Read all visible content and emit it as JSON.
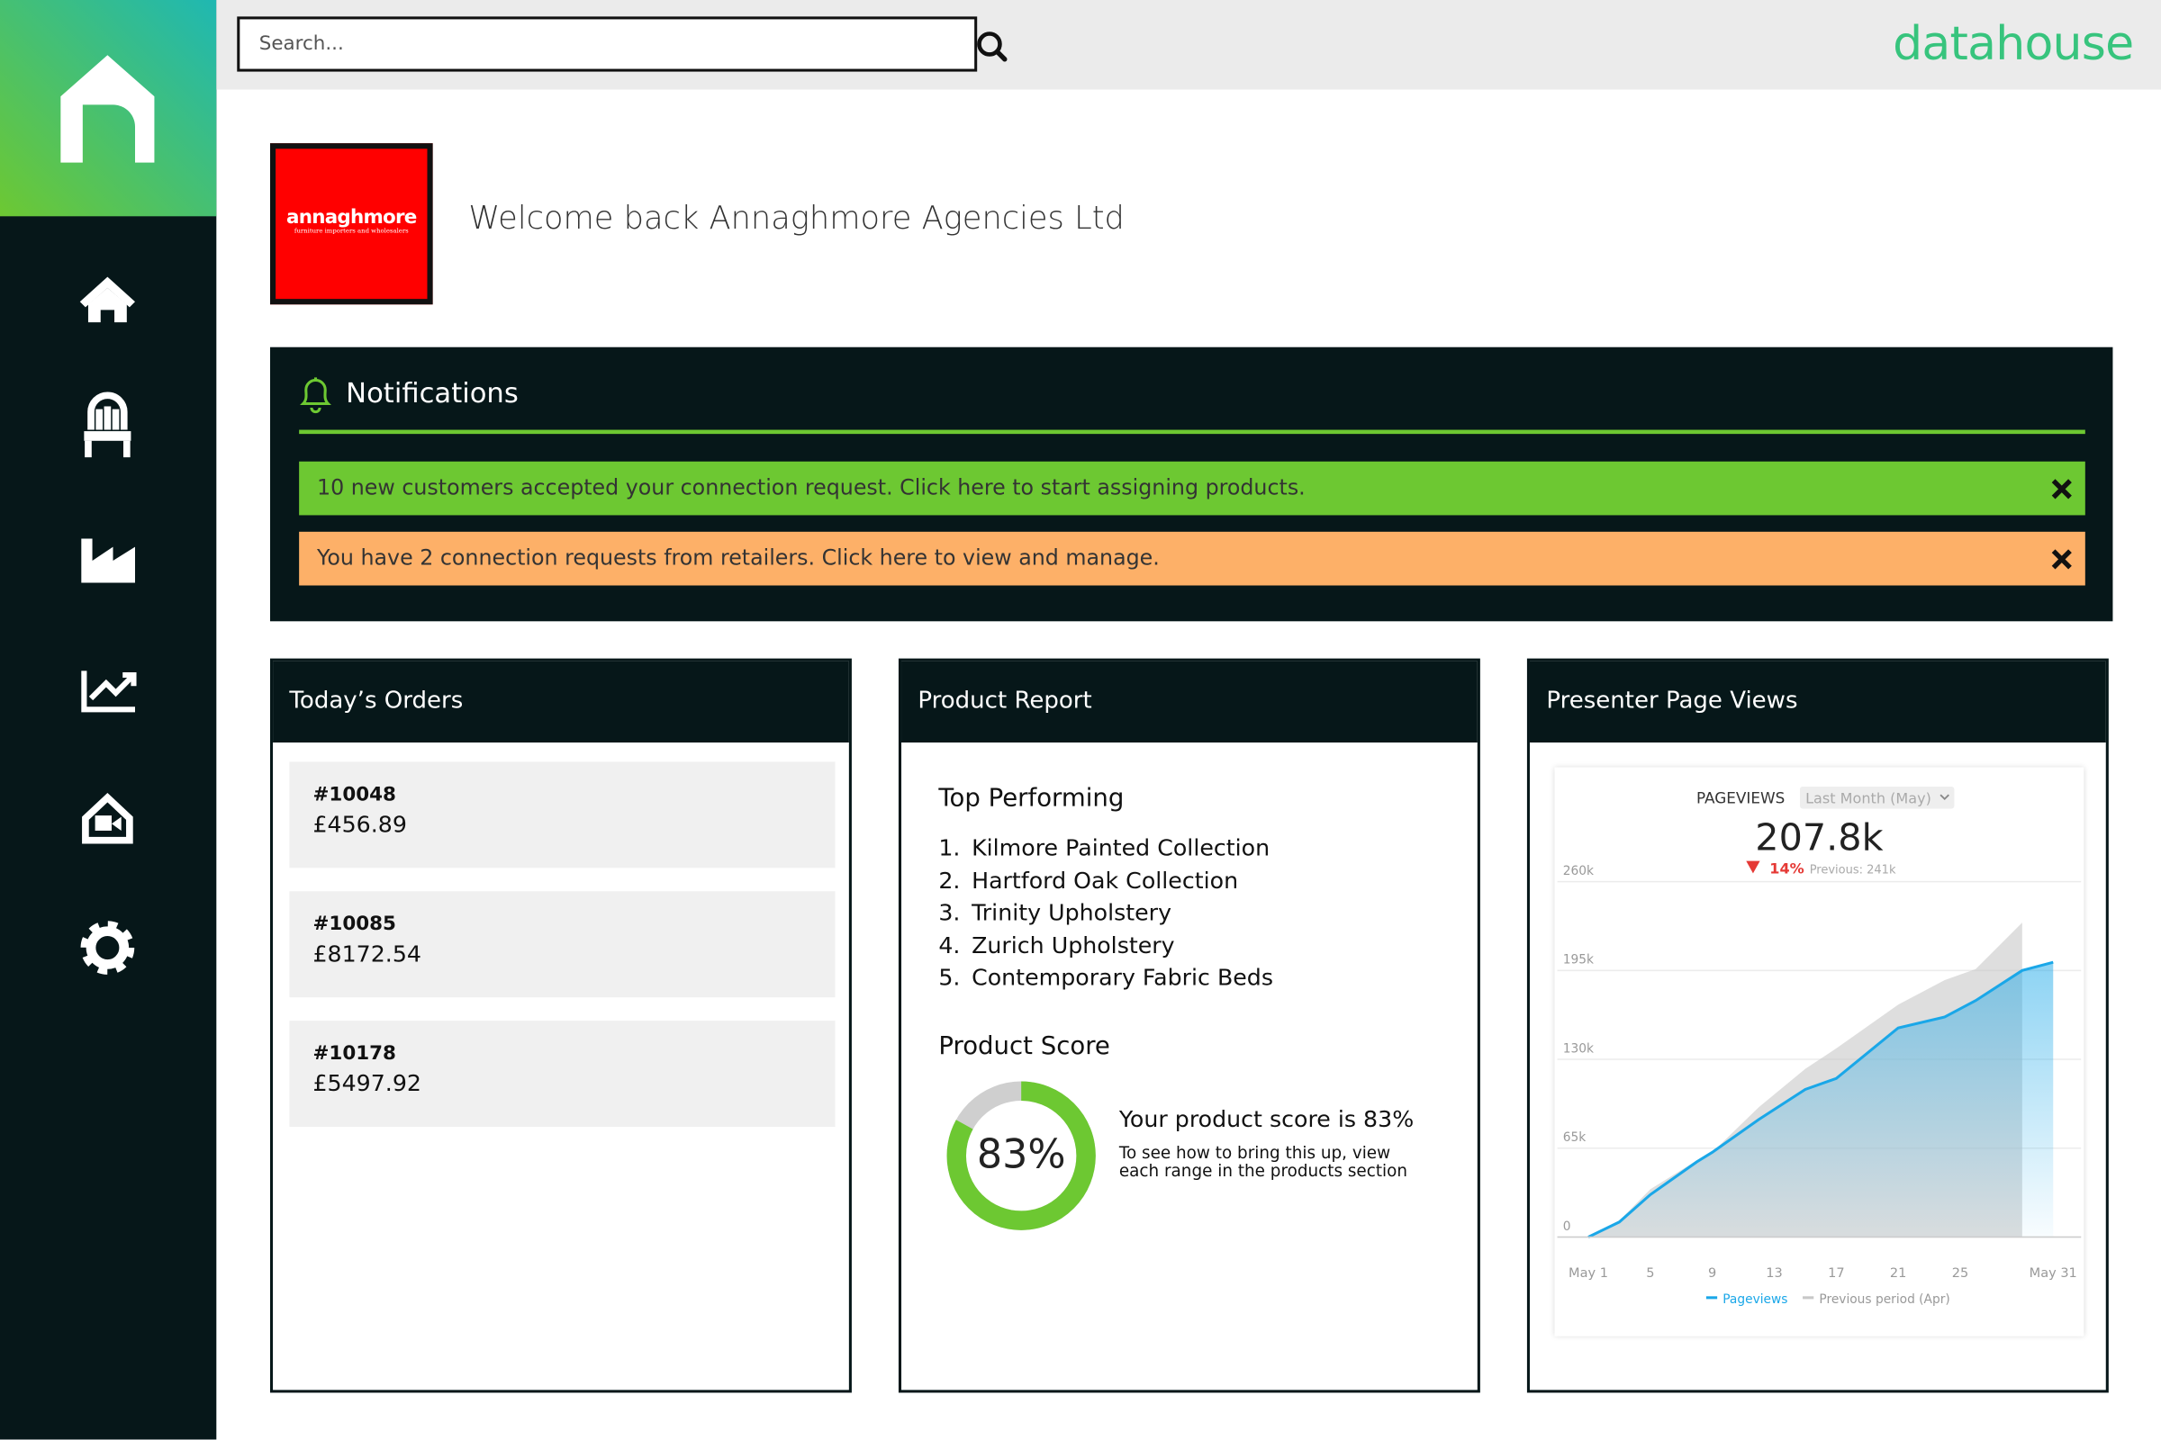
{
  "search": {
    "placeholder": "Search..."
  },
  "brand": "datahouse",
  "company": {
    "logo_name": "annaghmore",
    "logo_tagline": "furniture importers and wholesalers",
    "welcome": "Welcome back Annaghmore Agencies Ltd"
  },
  "notifications": {
    "title": "Notifications",
    "items": [
      {
        "text": "10 new customers accepted your connection request. Click here to start assigning products.",
        "color": "#6dc832"
      },
      {
        "text": "You have 2 connection requests from retailers. Click here to view and manage.",
        "color": "#fdb068"
      }
    ]
  },
  "orders": {
    "title": "Today’s Orders",
    "items": [
      {
        "id": "#10048",
        "amount": "£456.89"
      },
      {
        "id": "#10085",
        "amount": "£8172.54"
      },
      {
        "id": "#10178",
        "amount": "£5497.92"
      }
    ]
  },
  "product_report": {
    "title": "Product Report",
    "top_heading": "Top Performing",
    "top_items": [
      {
        "number": "1.",
        "name": "Kilmore Painted Collection"
      },
      {
        "number": "2.",
        "name": "Hartford Oak Collection"
      },
      {
        "number": "3.",
        "name": "Trinity Upholstery"
      },
      {
        "number": "4.",
        "name": "Zurich Upholstery"
      },
      {
        "number": "5.",
        "name": "Contemporary Fabric Beds"
      }
    ],
    "score_heading": "Product Score",
    "score": {
      "value": 83,
      "label": "83%"
    },
    "score_text": "Your product score is 83%",
    "score_note": "To see how to bring this up, view each range in the products section"
  },
  "page_views": {
    "title": "Presenter Page Views",
    "chart_data": {
      "type": "area",
      "title": "PAGEVIEWS",
      "period": "Last Month (May)",
      "total": "207.8k",
      "change": "14%",
      "previous": "Previous: 241k",
      "x": [
        1,
        3,
        5,
        8,
        9,
        12,
        15,
        17,
        21,
        24,
        26,
        29,
        31
      ],
      "series": [
        {
          "name": "Previous period (Apr)",
          "color": "#c8c8c8",
          "values": [
            0,
            12,
            35,
            56,
            62,
            95,
            123,
            138,
            170,
            188,
            196,
            230,
            null
          ]
        },
        {
          "name": "Pageviews",
          "color": "#1aa7e8",
          "values": [
            0,
            11,
            31,
            55,
            62,
            86,
            108,
            116,
            153,
            161,
            173,
            195,
            201
          ]
        }
      ],
      "xlim": [
        -1,
        32.8
      ],
      "ylim": [
        0,
        260
      ],
      "xticks": [
        {
          "value": 1,
          "label": "May 1"
        },
        5,
        9,
        13,
        17,
        21,
        25,
        {
          "value": 31,
          "label": "May 31"
        }
      ],
      "yticks": [
        0,
        {
          "value": 65,
          "label": "65k"
        },
        {
          "value": 130,
          "label": "130k"
        },
        {
          "value": 195,
          "label": "195k"
        },
        {
          "value": 260,
          "label": "260k"
        }
      ]
    }
  }
}
